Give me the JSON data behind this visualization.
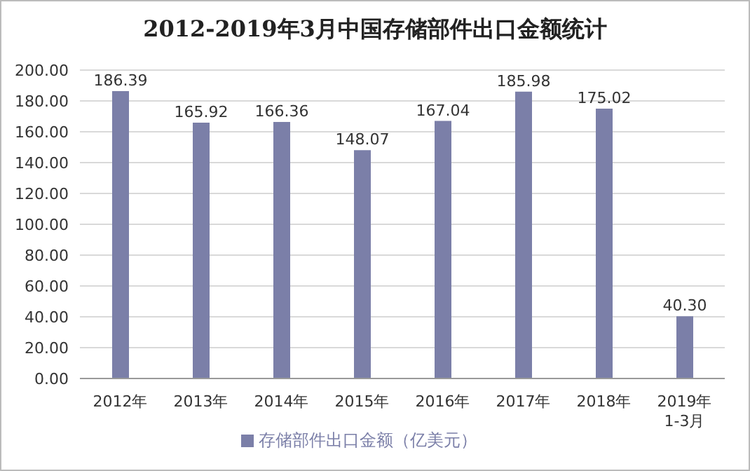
{
  "chart_data": {
    "type": "bar",
    "title": "2012-2019年3月中国存储部件出口金额统计",
    "categories": [
      "2012年",
      "2013年",
      "2014年",
      "2015年",
      "2016年",
      "2017年",
      "2018年",
      "2019年\n1-3月"
    ],
    "series": [
      {
        "name": "存储部件出口金额（亿美元）",
        "color": "#7b7fa8",
        "values": [
          186.39,
          165.92,
          166.36,
          148.07,
          167.04,
          185.98,
          175.02,
          40.3
        ],
        "value_labels": [
          "186.39",
          "165.92",
          "166.36",
          "148.07",
          "167.04",
          "185.98",
          "175.02",
          "40.30"
        ]
      }
    ],
    "ylim": [
      0,
      200
    ],
    "yticks": [
      {
        "value": 0,
        "label": "0.00"
      },
      {
        "value": 20,
        "label": "20.00"
      },
      {
        "value": 40,
        "label": "40.00"
      },
      {
        "value": 60,
        "label": "60.00"
      },
      {
        "value": 80,
        "label": "80.00"
      },
      {
        "value": 100,
        "label": "100.00"
      },
      {
        "value": 120,
        "label": "120.00"
      },
      {
        "value": 140,
        "label": "140.00"
      },
      {
        "value": 160,
        "label": "160.00"
      },
      {
        "value": 180,
        "label": "180.00"
      },
      {
        "value": 200,
        "label": "200.00"
      }
    ],
    "grid": "y",
    "legend": "bottom"
  }
}
